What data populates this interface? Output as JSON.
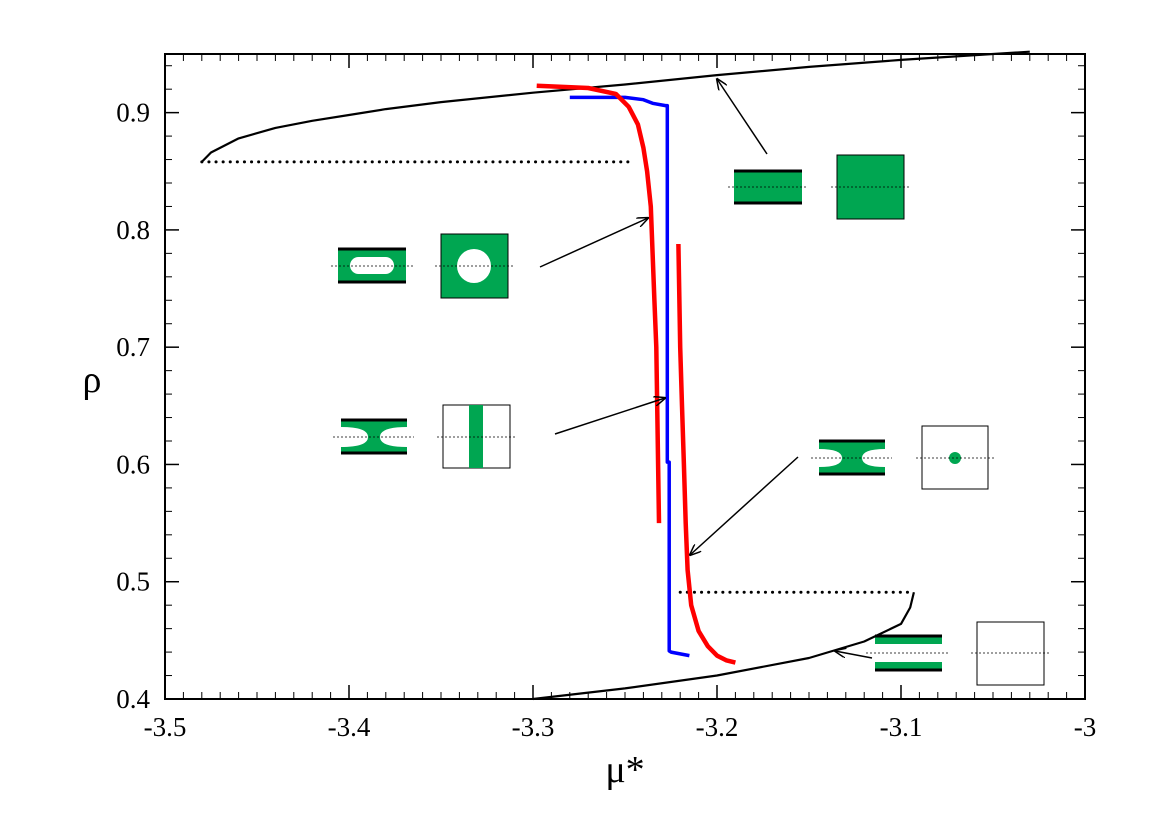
{
  "chart_data": {
    "type": "line",
    "title": "",
    "xlabel": "μ*",
    "ylabel": "ρ",
    "xlim": [
      -3.5,
      -3.0
    ],
    "ylim": [
      0.4,
      0.95
    ],
    "x_ticks": [
      -3.5,
      -3.4,
      -3.3,
      -3.2,
      -3.1,
      -3.0
    ],
    "x_tick_labels": [
      "-3.5",
      "-3.4",
      "-3.3",
      "-3.2",
      "-3.1",
      "-3"
    ],
    "y_ticks": [
      0.4,
      0.5,
      0.6,
      0.7,
      0.8,
      0.9
    ],
    "y_tick_labels": [
      "0.4",
      "0.5",
      "0.6",
      "0.7",
      "0.8",
      "0.9"
    ],
    "grid": false,
    "legend": "none",
    "colors": {
      "black": "#000000",
      "red": "#ff0000",
      "blue": "#0000ff",
      "green": "#00a651"
    },
    "series": [
      {
        "color": "#000000",
        "style": "solid",
        "x": [
          -3.48,
          -3.475,
          -3.46,
          -3.44,
          -3.42,
          -3.4,
          -3.38,
          -3.35,
          -3.3,
          -3.25,
          -3.2,
          -3.15,
          -3.1,
          -3.05,
          -3.03
        ],
        "y": [
          0.858,
          0.866,
          0.878,
          0.887,
          0.893,
          0.898,
          0.903,
          0.909,
          0.917,
          0.924,
          0.932,
          0.939,
          0.945,
          0.95,
          0.952
        ]
      },
      {
        "color": "#000000",
        "style": "dotted",
        "x": [
          -3.48,
          -3.245
        ],
        "y": [
          0.858,
          0.858
        ]
      },
      {
        "color": "#000000",
        "style": "solid",
        "x": [
          -3.3,
          -3.25,
          -3.2,
          -3.15,
          -3.12,
          -3.1,
          -3.095,
          -3.093
        ],
        "y": [
          0.4,
          0.409,
          0.42,
          0.435,
          0.449,
          0.464,
          0.478,
          0.491
        ]
      },
      {
        "color": "#000000",
        "style": "dotted",
        "x": [
          -3.22,
          -3.093
        ],
        "y": [
          0.491,
          0.491
        ]
      },
      {
        "color": "#0000ff",
        "style": "solid",
        "x": [
          -3.28,
          -3.25,
          -3.24,
          -3.235,
          -3.228,
          -3.227,
          -3.227,
          -3.226,
          -3.226,
          -3.225,
          -3.215
        ],
        "y": [
          0.913,
          0.913,
          0.911,
          0.908,
          0.906,
          0.906,
          0.602,
          0.602,
          0.441,
          0.44,
          0.437
        ]
      },
      {
        "color": "#ff0000",
        "style": "solid",
        "x": [
          -3.298,
          -3.27,
          -3.255,
          -3.248,
          -3.243,
          -3.24,
          -3.238,
          -3.236,
          -3.235,
          -3.234,
          -3.233,
          -3.2325,
          -3.232,
          -3.2315
        ],
        "y": [
          0.923,
          0.921,
          0.916,
          0.905,
          0.89,
          0.87,
          0.85,
          0.82,
          0.78,
          0.74,
          0.7,
          0.65,
          0.6,
          0.55
        ]
      },
      {
        "color": "#ff0000",
        "style": "solid",
        "x": [
          -3.221,
          -3.22,
          -3.219,
          -3.218,
          -3.217,
          -3.216,
          -3.214,
          -3.21,
          -3.205,
          -3.2,
          -3.195,
          -3.19
        ],
        "y": [
          0.788,
          0.7,
          0.65,
          0.6,
          0.55,
          0.51,
          0.48,
          0.458,
          0.445,
          0.437,
          0.433,
          0.431
        ]
      }
    ]
  }
}
